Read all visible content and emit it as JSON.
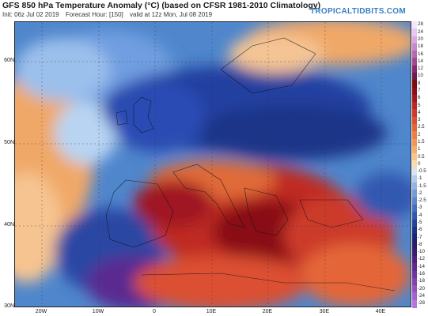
{
  "header": {
    "title": "GFS 850 hPa Temperature Anomaly (°C) (based on CFSR 1981-2010 Climatology)",
    "init": "Init: 06z Jul 02 2019",
    "forecast_hour": "Forecast Hour: [150]",
    "valid": "valid at 12z Mon, Jul 08 2019",
    "brand": "TROPICALTIDBITS.COM"
  },
  "map": {
    "lat_labels": [
      "60N",
      "50N",
      "40N",
      "30N"
    ],
    "lon_labels": [
      "20W",
      "10W",
      "0",
      "10E",
      "20E",
      "30E",
      "40E"
    ]
  },
  "colorbar": {
    "labels": [
      "28",
      "24",
      "20",
      "18",
      "16",
      "14",
      "12",
      "10",
      "8",
      "7",
      "6",
      "5",
      "4",
      "3",
      "2.5",
      "2",
      "1.5",
      "1",
      "0.5",
      "0",
      "-0.5",
      "-1",
      "-1.5",
      "-2",
      "-2.5",
      "-3",
      "-4",
      "-5",
      "-6",
      "-7",
      "-8",
      "-10",
      "-12",
      "-14",
      "-16",
      "-18",
      "-20",
      "-24",
      "-28"
    ],
    "colors": [
      "#f5e6ff",
      "#e8c8f0",
      "#d8a8e0",
      "#c888c8",
      "#b868b0",
      "#a04890",
      "#882870",
      "#701850",
      "#7a0a14",
      "#8c0f18",
      "#a01820",
      "#b82828",
      "#cc3a2a",
      "#dc5030",
      "#e46638",
      "#ec7e44",
      "#f29656",
      "#f6ae6e",
      "#f8c68c",
      "#f8dcae",
      "#d8e4f4",
      "#b4ccec",
      "#94b4e0",
      "#749cd6",
      "#5a86cc",
      "#4470c0",
      "#3258b0",
      "#24449c",
      "#1a3488",
      "#1c2678",
      "#2a1e6e",
      "#3a1e72",
      "#4c2280",
      "#5e2a90",
      "#7034a0",
      "#8240b0",
      "#9450c0",
      "#a462cc",
      "#b476d8"
    ]
  },
  "colors": {
    "warm": "#c83020",
    "cold": "#2a50b0",
    "brand": "#3a7fc4"
  }
}
